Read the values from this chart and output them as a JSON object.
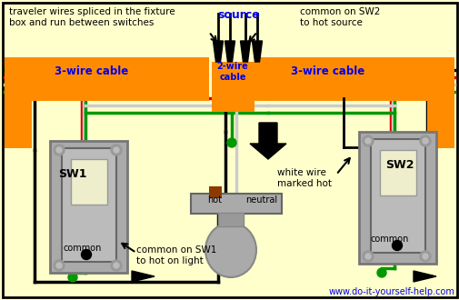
{
  "bg": "#FFFFCC",
  "orange": "#FF8C00",
  "wire_black": "#000000",
  "wire_red": "#DD0000",
  "wire_green": "#009900",
  "wire_white": "#CCCCCC",
  "wire_gray": "#888888",
  "wire_brown": "#8B3A00",
  "switch_body": "#AAAAAA",
  "switch_inner": "#BBBBBB",
  "switch_toggle": "#EEEECC",
  "screw_color": "#999999",
  "text_blue": "#0000EE",
  "text_black": "#000000",
  "traveler_label": "traveler wires spliced in the fixture\nbox and run between switches",
  "source_label": "source",
  "sw2_common_label": "common on SW2\nto hot source",
  "sw1_common_label": "common on SW1\nto hot on light",
  "white_wire_label": "white wire\nmarked hot",
  "cable_left": "3-wire cable",
  "cable_right": "3-wire cable",
  "cable_center": "2-wire\ncable",
  "sw1_label": "SW1",
  "sw2_label": "SW2",
  "common_label": "common",
  "hot_label": "hot",
  "neutral_label": "neutral",
  "website": "www.do-it-yourself-help.com"
}
